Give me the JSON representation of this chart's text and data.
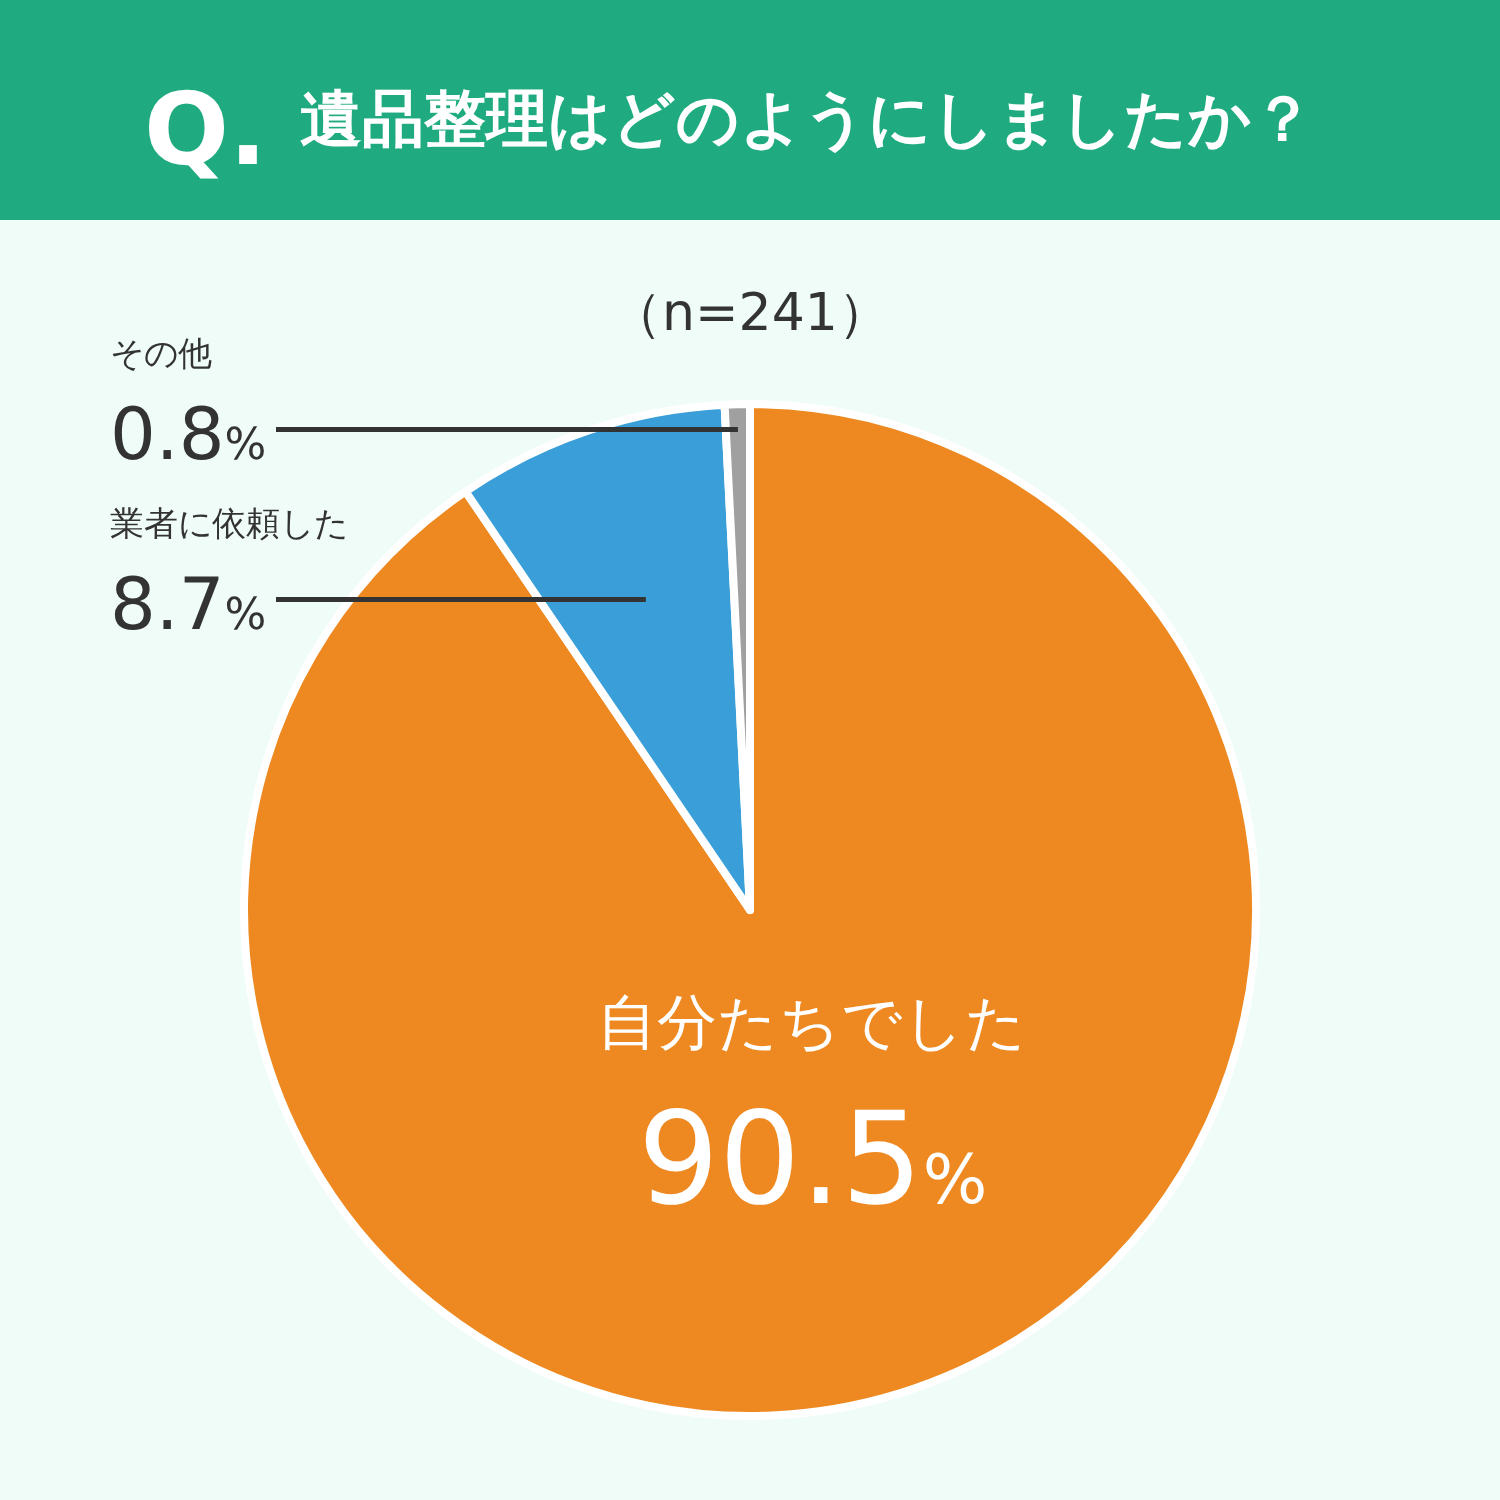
{
  "chart_data": {
    "type": "pie",
    "title": "遺品整理はどのようにしましたか？",
    "subtitle": "（n=241）",
    "annotations": [
      "Q."
    ],
    "categories": [
      "自分たちでした",
      "業者に依頼した",
      "その他"
    ],
    "values": [
      90.5,
      8.7,
      0.8
    ],
    "colors": [
      "#ee8820",
      "#3a9fd8",
      "#a0a0a0"
    ],
    "value_labels": [
      "90.5%",
      "8.7%",
      "0.8%"
    ]
  }
}
